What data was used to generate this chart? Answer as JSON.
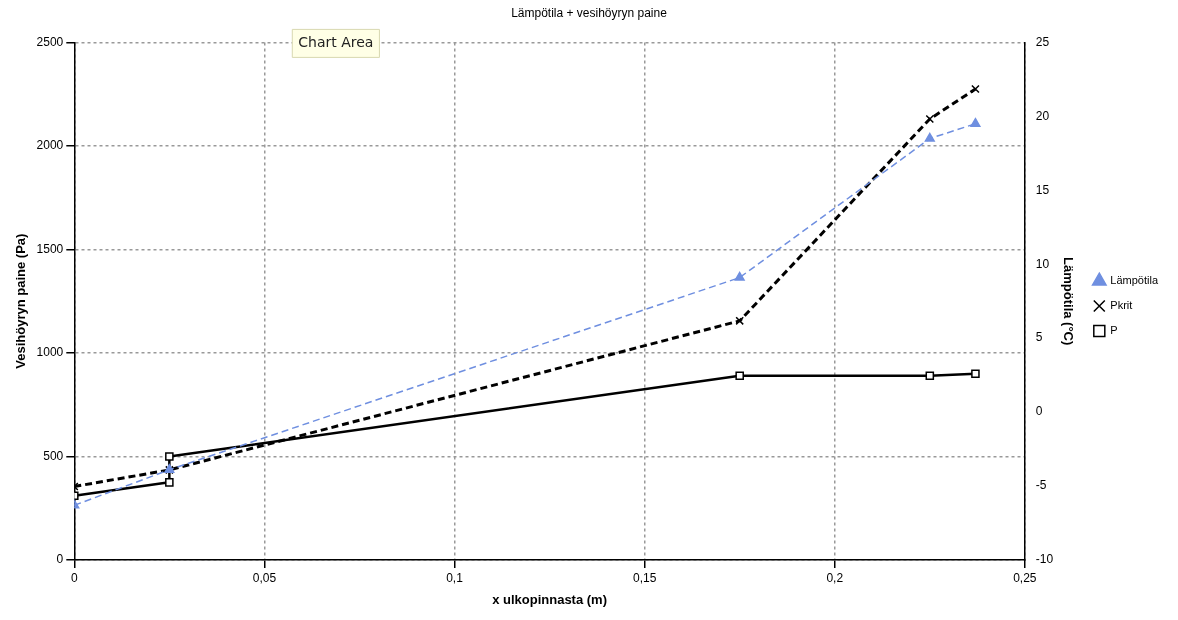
{
  "chart_data": {
    "type": "line",
    "title": "Lämpötila + vesihöyryn paine",
    "xlabel": "x ulkopinnasta (m)",
    "ylabel": "Vesihöyryn paine (Pa)",
    "y2label": "Lämpötila (°C)",
    "annotations": [
      "Chart Area"
    ],
    "xlim": [
      0,
      0.25
    ],
    "xticks": [
      0,
      {
        "value": 0.05,
        "label": "0,05"
      },
      {
        "value": 0.1,
        "label": "0,1"
      },
      {
        "value": 0.15,
        "label": "0,15"
      },
      {
        "value": 0.2,
        "label": "0,2"
      },
      {
        "value": 0.25,
        "label": "0,25"
      }
    ],
    "ylim": [
      0,
      2500
    ],
    "yticks": [
      0,
      500,
      1000,
      1500,
      2000,
      2500
    ],
    "y2lim": [
      -10,
      25
    ],
    "y2ticks": [
      -10,
      -5,
      0,
      5,
      10,
      15,
      20,
      25
    ],
    "grid": true,
    "legend": "right",
    "series": [
      {
        "name": "P",
        "color": "#000000",
        "marker": "square",
        "line_style": "solid",
        "x": [
          0,
          0.025,
          0.025,
          0.175,
          0.225,
          0.237
        ],
        "values": [
          310,
          375,
          500,
          890,
          890,
          900
        ]
      },
      {
        "name": "Pkrit",
        "color": "#000000",
        "marker": "cross",
        "line_style": "dashed",
        "x": [
          0,
          0.025,
          0.175,
          0.225,
          0.237
        ],
        "values": [
          355,
          435,
          1155,
          2130,
          2275
        ]
      },
      {
        "name": "Lämpötila",
        "color": "#6f8fe0",
        "marker": "triangle",
        "line_style": "dashed",
        "axis": "y2",
        "x": [
          0,
          0.025,
          0.175,
          0.225,
          0.237
        ],
        "values": [
          -6.3,
          -3.9,
          9.1,
          18.5,
          19.5
        ]
      }
    ]
  }
}
